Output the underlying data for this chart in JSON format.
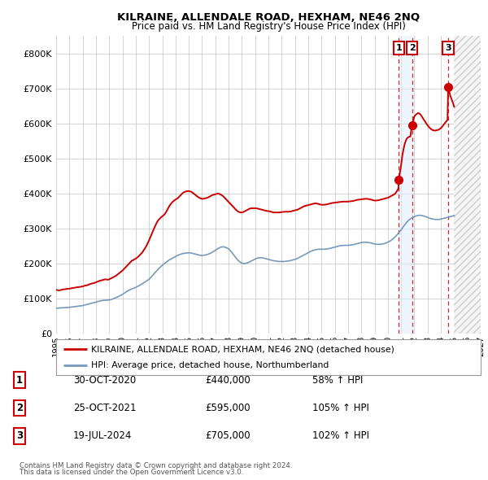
{
  "title": "KILRAINE, ALLENDALE ROAD, HEXHAM, NE46 2NQ",
  "subtitle": "Price paid vs. HM Land Registry's House Price Index (HPI)",
  "legend_line1": "KILRAINE, ALLENDALE ROAD, HEXHAM, NE46 2NQ (detached house)",
  "legend_line2": "HPI: Average price, detached house, Northumberland",
  "footnote1": "Contains HM Land Registry data © Crown copyright and database right 2024.",
  "footnote2": "This data is licensed under the Open Government Licence v3.0.",
  "transactions": [
    {
      "num": 1,
      "date": "30-OCT-2020",
      "price": "£440,000",
      "hpi": "58% ↑ HPI",
      "year": 2020.83
    },
    {
      "num": 2,
      "date": "25-OCT-2021",
      "price": "£595,000",
      "hpi": "105% ↑ HPI",
      "year": 2021.82
    },
    {
      "num": 3,
      "date": "19-JUL-2024",
      "price": "£705,000",
      "hpi": "102% ↑ HPI",
      "year": 2024.55
    }
  ],
  "trans_prices": [
    440000,
    595000,
    705000
  ],
  "red_line_color": "#cc0000",
  "blue_line_color": "#7799bb",
  "background_color": "#ffffff",
  "grid_color": "#cccccc",
  "ylim": [
    0,
    850000
  ],
  "xlim_start": 1995,
  "xlim_end": 2027,
  "ytick_values": [
    0,
    100000,
    200000,
    300000,
    400000,
    500000,
    600000,
    700000,
    800000
  ],
  "ytick_labels": [
    "£0",
    "£100K",
    "£200K",
    "£300K",
    "£400K",
    "£500K",
    "£600K",
    "£700K",
    "£800K"
  ],
  "xtick_years": [
    1995,
    1996,
    1997,
    1998,
    1999,
    2000,
    2001,
    2002,
    2003,
    2004,
    2005,
    2006,
    2007,
    2008,
    2009,
    2010,
    2011,
    2012,
    2013,
    2014,
    2015,
    2016,
    2017,
    2018,
    2019,
    2020,
    2021,
    2022,
    2023,
    2024,
    2025,
    2026,
    2027
  ],
  "hatch_start": 2025.0,
  "highlight_x1": 2020.83,
  "highlight_x2": 2021.82,
  "red_data": [
    [
      1995.0,
      125000
    ],
    [
      1995.1,
      124000
    ],
    [
      1995.2,
      123500
    ],
    [
      1995.3,
      124000
    ],
    [
      1995.4,
      125000
    ],
    [
      1995.5,
      126000
    ],
    [
      1995.6,
      126500
    ],
    [
      1995.7,
      127000
    ],
    [
      1995.8,
      127500
    ],
    [
      1995.9,
      128000
    ],
    [
      1996.0,
      128500
    ],
    [
      1996.1,
      129000
    ],
    [
      1996.2,
      130000
    ],
    [
      1996.3,
      130500
    ],
    [
      1996.4,
      131000
    ],
    [
      1996.5,
      132000
    ],
    [
      1996.6,
      132500
    ],
    [
      1996.7,
      133000
    ],
    [
      1996.8,
      133500
    ],
    [
      1996.9,
      134000
    ],
    [
      1997.0,
      135000
    ],
    [
      1997.1,
      136000
    ],
    [
      1997.2,
      137000
    ],
    [
      1997.3,
      138000
    ],
    [
      1997.4,
      139000
    ],
    [
      1997.5,
      140500
    ],
    [
      1997.6,
      142000
    ],
    [
      1997.7,
      143000
    ],
    [
      1997.8,
      144000
    ],
    [
      1997.9,
      145000
    ],
    [
      1998.0,
      146500
    ],
    [
      1998.1,
      148000
    ],
    [
      1998.2,
      149500
    ],
    [
      1998.3,
      151000
    ],
    [
      1998.4,
      152000
    ],
    [
      1998.5,
      153000
    ],
    [
      1998.6,
      154000
    ],
    [
      1998.7,
      155000
    ],
    [
      1998.8,
      154500
    ],
    [
      1998.9,
      154000
    ],
    [
      1999.0,
      155000
    ],
    [
      1999.1,
      157000
    ],
    [
      1999.2,
      159000
    ],
    [
      1999.3,
      161000
    ],
    [
      1999.4,
      163000
    ],
    [
      1999.5,
      165000
    ],
    [
      1999.6,
      168000
    ],
    [
      1999.7,
      171000
    ],
    [
      1999.8,
      174000
    ],
    [
      1999.9,
      177000
    ],
    [
      2000.0,
      180000
    ],
    [
      2000.1,
      184000
    ],
    [
      2000.2,
      188000
    ],
    [
      2000.3,
      192000
    ],
    [
      2000.4,
      196000
    ],
    [
      2000.5,
      200000
    ],
    [
      2000.6,
      204000
    ],
    [
      2000.7,
      208000
    ],
    [
      2000.8,
      210000
    ],
    [
      2000.9,
      212000
    ],
    [
      2001.0,
      214000
    ],
    [
      2001.1,
      217000
    ],
    [
      2001.2,
      220000
    ],
    [
      2001.3,
      224000
    ],
    [
      2001.4,
      228000
    ],
    [
      2001.5,
      232000
    ],
    [
      2001.6,
      238000
    ],
    [
      2001.7,
      244000
    ],
    [
      2001.8,
      250000
    ],
    [
      2001.9,
      258000
    ],
    [
      2002.0,
      266000
    ],
    [
      2002.1,
      275000
    ],
    [
      2002.2,
      284000
    ],
    [
      2002.3,
      293000
    ],
    [
      2002.4,
      302000
    ],
    [
      2002.5,
      310000
    ],
    [
      2002.6,
      318000
    ],
    [
      2002.7,
      324000
    ],
    [
      2002.8,
      328000
    ],
    [
      2002.9,
      332000
    ],
    [
      2003.0,
      335000
    ],
    [
      2003.1,
      338000
    ],
    [
      2003.2,
      342000
    ],
    [
      2003.3,
      348000
    ],
    [
      2003.4,
      355000
    ],
    [
      2003.5,
      362000
    ],
    [
      2003.6,
      368000
    ],
    [
      2003.7,
      373000
    ],
    [
      2003.8,
      377000
    ],
    [
      2003.9,
      380000
    ],
    [
      2004.0,
      383000
    ],
    [
      2004.1,
      385000
    ],
    [
      2004.2,
      388000
    ],
    [
      2004.3,
      392000
    ],
    [
      2004.4,
      396000
    ],
    [
      2004.5,
      400000
    ],
    [
      2004.6,
      403000
    ],
    [
      2004.7,
      405000
    ],
    [
      2004.8,
      406000
    ],
    [
      2004.9,
      407000
    ],
    [
      2005.0,
      407000
    ],
    [
      2005.1,
      406000
    ],
    [
      2005.2,
      405000
    ],
    [
      2005.3,
      402000
    ],
    [
      2005.4,
      399000
    ],
    [
      2005.5,
      396000
    ],
    [
      2005.6,
      393000
    ],
    [
      2005.7,
      390000
    ],
    [
      2005.8,
      388000
    ],
    [
      2005.9,
      386000
    ],
    [
      2006.0,
      385000
    ],
    [
      2006.1,
      385000
    ],
    [
      2006.2,
      386000
    ],
    [
      2006.3,
      387000
    ],
    [
      2006.4,
      388000
    ],
    [
      2006.5,
      390000
    ],
    [
      2006.6,
      392000
    ],
    [
      2006.7,
      394000
    ],
    [
      2006.8,
      396000
    ],
    [
      2006.9,
      397000
    ],
    [
      2007.0,
      398000
    ],
    [
      2007.1,
      399000
    ],
    [
      2007.2,
      400000
    ],
    [
      2007.3,
      399000
    ],
    [
      2007.4,
      397000
    ],
    [
      2007.5,
      395000
    ],
    [
      2007.6,
      392000
    ],
    [
      2007.7,
      388000
    ],
    [
      2007.8,
      384000
    ],
    [
      2007.9,
      380000
    ],
    [
      2008.0,
      376000
    ],
    [
      2008.1,
      372000
    ],
    [
      2008.2,
      368000
    ],
    [
      2008.3,
      364000
    ],
    [
      2008.4,
      360000
    ],
    [
      2008.5,
      356000
    ],
    [
      2008.6,
      352000
    ],
    [
      2008.7,
      349000
    ],
    [
      2008.8,
      347000
    ],
    [
      2008.9,
      346000
    ],
    [
      2009.0,
      346000
    ],
    [
      2009.1,
      347000
    ],
    [
      2009.2,
      349000
    ],
    [
      2009.3,
      351000
    ],
    [
      2009.4,
      353000
    ],
    [
      2009.5,
      355000
    ],
    [
      2009.6,
      357000
    ],
    [
      2009.7,
      358000
    ],
    [
      2009.8,
      358000
    ],
    [
      2009.9,
      358000
    ],
    [
      2010.0,
      358000
    ],
    [
      2010.1,
      358000
    ],
    [
      2010.2,
      357000
    ],
    [
      2010.3,
      356000
    ],
    [
      2010.4,
      355000
    ],
    [
      2010.5,
      354000
    ],
    [
      2010.6,
      353000
    ],
    [
      2010.7,
      352000
    ],
    [
      2010.8,
      351000
    ],
    [
      2010.9,
      350000
    ],
    [
      2011.0,
      350000
    ],
    [
      2011.1,
      349000
    ],
    [
      2011.2,
      348000
    ],
    [
      2011.3,
      347000
    ],
    [
      2011.4,
      346000
    ],
    [
      2011.5,
      346000
    ],
    [
      2011.6,
      346000
    ],
    [
      2011.7,
      346000
    ],
    [
      2011.8,
      346000
    ],
    [
      2011.9,
      346500
    ],
    [
      2012.0,
      347000
    ],
    [
      2012.1,
      347500
    ],
    [
      2012.2,
      348000
    ],
    [
      2012.3,
      348000
    ],
    [
      2012.4,
      348000
    ],
    [
      2012.5,
      348000
    ],
    [
      2012.6,
      348500
    ],
    [
      2012.7,
      349000
    ],
    [
      2012.8,
      350000
    ],
    [
      2012.9,
      351000
    ],
    [
      2013.0,
      352000
    ],
    [
      2013.1,
      353000
    ],
    [
      2013.2,
      354000
    ],
    [
      2013.3,
      356000
    ],
    [
      2013.4,
      358000
    ],
    [
      2013.5,
      360000
    ],
    [
      2013.6,
      362000
    ],
    [
      2013.7,
      364000
    ],
    [
      2013.8,
      365000
    ],
    [
      2013.9,
      366000
    ],
    [
      2014.0,
      367000
    ],
    [
      2014.1,
      368000
    ],
    [
      2014.2,
      369000
    ],
    [
      2014.3,
      370000
    ],
    [
      2014.4,
      371000
    ],
    [
      2014.5,
      372000
    ],
    [
      2014.6,
      372000
    ],
    [
      2014.7,
      371000
    ],
    [
      2014.8,
      370000
    ],
    [
      2014.9,
      369000
    ],
    [
      2015.0,
      368000
    ],
    [
      2015.1,
      368000
    ],
    [
      2015.2,
      368000
    ],
    [
      2015.3,
      368500
    ],
    [
      2015.4,
      369000
    ],
    [
      2015.5,
      370000
    ],
    [
      2015.6,
      371000
    ],
    [
      2015.7,
      372000
    ],
    [
      2015.8,
      373000
    ],
    [
      2015.9,
      373500
    ],
    [
      2016.0,
      374000
    ],
    [
      2016.1,
      374500
    ],
    [
      2016.2,
      375000
    ],
    [
      2016.3,
      375500
    ],
    [
      2016.4,
      376000
    ],
    [
      2016.5,
      376500
    ],
    [
      2016.6,
      377000
    ],
    [
      2016.7,
      377000
    ],
    [
      2016.8,
      377000
    ],
    [
      2016.9,
      377000
    ],
    [
      2017.0,
      377000
    ],
    [
      2017.1,
      377500
    ],
    [
      2017.2,
      378000
    ],
    [
      2017.3,
      378500
    ],
    [
      2017.4,
      379000
    ],
    [
      2017.5,
      380000
    ],
    [
      2017.6,
      381000
    ],
    [
      2017.7,
      382000
    ],
    [
      2017.8,
      382500
    ],
    [
      2017.9,
      383000
    ],
    [
      2018.0,
      383500
    ],
    [
      2018.1,
      384000
    ],
    [
      2018.2,
      384500
    ],
    [
      2018.3,
      385000
    ],
    [
      2018.4,
      385000
    ],
    [
      2018.5,
      384500
    ],
    [
      2018.6,
      384000
    ],
    [
      2018.7,
      383000
    ],
    [
      2018.8,
      382000
    ],
    [
      2018.9,
      381000
    ],
    [
      2019.0,
      380000
    ],
    [
      2019.1,
      380000
    ],
    [
      2019.2,
      380500
    ],
    [
      2019.3,
      381000
    ],
    [
      2019.4,
      382000
    ],
    [
      2019.5,
      383000
    ],
    [
      2019.6,
      384000
    ],
    [
      2019.7,
      385000
    ],
    [
      2019.8,
      386000
    ],
    [
      2019.9,
      387000
    ],
    [
      2020.0,
      388000
    ],
    [
      2020.1,
      390000
    ],
    [
      2020.2,
      392000
    ],
    [
      2020.3,
      394000
    ],
    [
      2020.4,
      396000
    ],
    [
      2020.5,
      398000
    ],
    [
      2020.6,
      402000
    ],
    [
      2020.7,
      408000
    ],
    [
      2020.8,
      415000
    ],
    [
      2020.83,
      440000
    ],
    [
      2021.0,
      480000
    ],
    [
      2021.1,
      510000
    ],
    [
      2021.2,
      530000
    ],
    [
      2021.3,
      545000
    ],
    [
      2021.4,
      555000
    ],
    [
      2021.5,
      560000
    ],
    [
      2021.6,
      562000
    ],
    [
      2021.7,
      563000
    ],
    [
      2021.82,
      595000
    ],
    [
      2022.0,
      620000
    ],
    [
      2022.1,
      625000
    ],
    [
      2022.2,
      628000
    ],
    [
      2022.3,
      630000
    ],
    [
      2022.4,
      628000
    ],
    [
      2022.5,
      624000
    ],
    [
      2022.6,
      618000
    ],
    [
      2022.7,
      612000
    ],
    [
      2022.8,
      606000
    ],
    [
      2022.9,
      600000
    ],
    [
      2023.0,
      595000
    ],
    [
      2023.1,
      590000
    ],
    [
      2023.2,
      586000
    ],
    [
      2023.3,
      583000
    ],
    [
      2023.4,
      581000
    ],
    [
      2023.5,
      580000
    ],
    [
      2023.6,
      580000
    ],
    [
      2023.7,
      581000
    ],
    [
      2023.8,
      582000
    ],
    [
      2023.9,
      584000
    ],
    [
      2024.0,
      587000
    ],
    [
      2024.1,
      591000
    ],
    [
      2024.2,
      596000
    ],
    [
      2024.3,
      601000
    ],
    [
      2024.4,
      606000
    ],
    [
      2024.5,
      610000
    ],
    [
      2024.55,
      705000
    ],
    [
      2024.7,
      680000
    ],
    [
      2024.8,
      670000
    ],
    [
      2024.9,
      660000
    ],
    [
      2025.0,
      648000
    ]
  ],
  "blue_data": [
    [
      1995.0,
      72000
    ],
    [
      1995.2,
      73000
    ],
    [
      1995.4,
      73500
    ],
    [
      1995.6,
      74000
    ],
    [
      1995.8,
      74500
    ],
    [
      1996.0,
      75000
    ],
    [
      1996.2,
      76000
    ],
    [
      1996.4,
      77000
    ],
    [
      1996.6,
      78000
    ],
    [
      1996.8,
      79000
    ],
    [
      1997.0,
      80000
    ],
    [
      1997.2,
      82000
    ],
    [
      1997.4,
      84000
    ],
    [
      1997.6,
      86000
    ],
    [
      1997.8,
      88000
    ],
    [
      1998.0,
      90000
    ],
    [
      1998.2,
      92000
    ],
    [
      1998.4,
      94000
    ],
    [
      1998.6,
      95000
    ],
    [
      1998.8,
      95500
    ],
    [
      1999.0,
      96000
    ],
    [
      1999.2,
      98000
    ],
    [
      1999.4,
      101000
    ],
    [
      1999.6,
      104000
    ],
    [
      1999.8,
      108000
    ],
    [
      2000.0,
      112000
    ],
    [
      2000.2,
      117000
    ],
    [
      2000.4,
      122000
    ],
    [
      2000.6,
      126000
    ],
    [
      2000.8,
      129000
    ],
    [
      2001.0,
      132000
    ],
    [
      2001.2,
      136000
    ],
    [
      2001.4,
      140000
    ],
    [
      2001.6,
      145000
    ],
    [
      2001.8,
      150000
    ],
    [
      2002.0,
      155000
    ],
    [
      2002.2,
      163000
    ],
    [
      2002.4,
      172000
    ],
    [
      2002.6,
      180000
    ],
    [
      2002.8,
      188000
    ],
    [
      2003.0,
      195000
    ],
    [
      2003.2,
      201000
    ],
    [
      2003.4,
      207000
    ],
    [
      2003.6,
      212000
    ],
    [
      2003.8,
      216000
    ],
    [
      2004.0,
      220000
    ],
    [
      2004.2,
      224000
    ],
    [
      2004.4,
      227000
    ],
    [
      2004.6,
      229000
    ],
    [
      2004.8,
      230000
    ],
    [
      2005.0,
      231000
    ],
    [
      2005.2,
      230000
    ],
    [
      2005.4,
      228000
    ],
    [
      2005.6,
      226000
    ],
    [
      2005.8,
      224000
    ],
    [
      2006.0,
      223000
    ],
    [
      2006.2,
      224000
    ],
    [
      2006.4,
      226000
    ],
    [
      2006.6,
      229000
    ],
    [
      2006.8,
      233000
    ],
    [
      2007.0,
      238000
    ],
    [
      2007.2,
      243000
    ],
    [
      2007.4,
      247000
    ],
    [
      2007.6,
      248000
    ],
    [
      2007.8,
      246000
    ],
    [
      2008.0,
      242000
    ],
    [
      2008.2,
      234000
    ],
    [
      2008.4,
      224000
    ],
    [
      2008.6,
      214000
    ],
    [
      2008.8,
      206000
    ],
    [
      2009.0,
      201000
    ],
    [
      2009.2,
      200000
    ],
    [
      2009.4,
      202000
    ],
    [
      2009.6,
      205000
    ],
    [
      2009.8,
      209000
    ],
    [
      2010.0,
      213000
    ],
    [
      2010.2,
      216000
    ],
    [
      2010.4,
      217000
    ],
    [
      2010.6,
      216000
    ],
    [
      2010.8,
      214000
    ],
    [
      2011.0,
      212000
    ],
    [
      2011.2,
      210000
    ],
    [
      2011.4,
      208000
    ],
    [
      2011.6,
      207000
    ],
    [
      2011.8,
      206000
    ],
    [
      2012.0,
      206000
    ],
    [
      2012.2,
      206000
    ],
    [
      2012.4,
      207000
    ],
    [
      2012.6,
      208000
    ],
    [
      2012.8,
      210000
    ],
    [
      2013.0,
      212000
    ],
    [
      2013.2,
      215000
    ],
    [
      2013.4,
      219000
    ],
    [
      2013.6,
      223000
    ],
    [
      2013.8,
      227000
    ],
    [
      2014.0,
      231000
    ],
    [
      2014.2,
      235000
    ],
    [
      2014.4,
      238000
    ],
    [
      2014.6,
      240000
    ],
    [
      2014.8,
      241000
    ],
    [
      2015.0,
      241000
    ],
    [
      2015.2,
      241000
    ],
    [
      2015.4,
      242000
    ],
    [
      2015.6,
      243000
    ],
    [
      2015.8,
      245000
    ],
    [
      2016.0,
      247000
    ],
    [
      2016.2,
      249000
    ],
    [
      2016.4,
      251000
    ],
    [
      2016.6,
      252000
    ],
    [
      2016.8,
      252000
    ],
    [
      2017.0,
      252000
    ],
    [
      2017.2,
      253000
    ],
    [
      2017.4,
      254000
    ],
    [
      2017.6,
      256000
    ],
    [
      2017.8,
      258000
    ],
    [
      2018.0,
      260000
    ],
    [
      2018.2,
      261000
    ],
    [
      2018.4,
      261000
    ],
    [
      2018.6,
      260000
    ],
    [
      2018.8,
      258000
    ],
    [
      2019.0,
      256000
    ],
    [
      2019.2,
      255000
    ],
    [
      2019.4,
      255000
    ],
    [
      2019.6,
      256000
    ],
    [
      2019.8,
      258000
    ],
    [
      2020.0,
      261000
    ],
    [
      2020.2,
      265000
    ],
    [
      2020.4,
      271000
    ],
    [
      2020.6,
      278000
    ],
    [
      2020.8,
      287000
    ],
    [
      2021.0,
      296000
    ],
    [
      2021.2,
      307000
    ],
    [
      2021.4,
      317000
    ],
    [
      2021.6,
      325000
    ],
    [
      2021.8,
      330000
    ],
    [
      2022.0,
      334000
    ],
    [
      2022.2,
      337000
    ],
    [
      2022.4,
      338000
    ],
    [
      2022.6,
      337000
    ],
    [
      2022.8,
      335000
    ],
    [
      2023.0,
      332000
    ],
    [
      2023.2,
      329000
    ],
    [
      2023.4,
      327000
    ],
    [
      2023.6,
      326000
    ],
    [
      2023.8,
      326000
    ],
    [
      2024.0,
      327000
    ],
    [
      2024.2,
      329000
    ],
    [
      2024.4,
      331000
    ],
    [
      2024.6,
      333000
    ],
    [
      2024.8,
      335000
    ],
    [
      2025.0,
      337000
    ]
  ]
}
